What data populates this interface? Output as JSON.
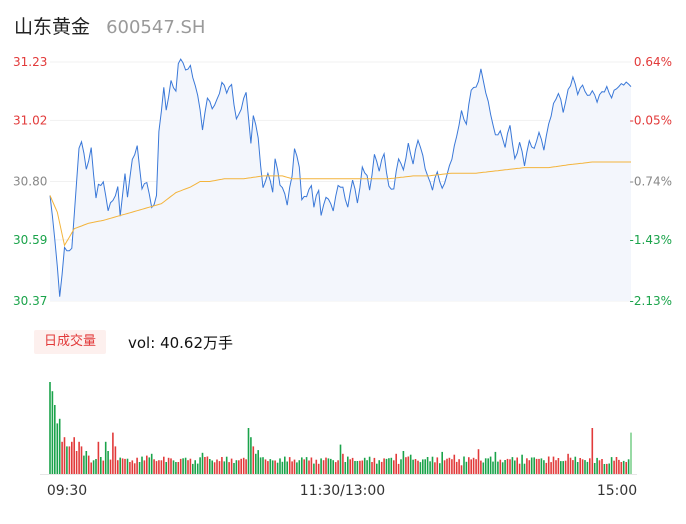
{
  "header": {
    "stock_name": "山东黄金",
    "stock_code": "600547.SH"
  },
  "volume_panel": {
    "tab_label": "日成交量",
    "vol_prefix": "vol:",
    "vol_value": "40.62万手"
  },
  "colors": {
    "price_line": "#3a78d8",
    "avg_line": "#f3b43c",
    "up": "#e23a3a",
    "down": "#1aa34a",
    "neutral": "#888888"
  },
  "chart_data": [
    {
      "type": "line",
      "title": "",
      "x_ticks": [
        "09:30",
        "11:30/13:00",
        "15:00"
      ],
      "y_ticks_price": [
        "31.23",
        "31.02",
        "30.80",
        "30.59",
        "30.37"
      ],
      "y_ticks_pct": [
        "0.64%",
        "-0.05%",
        "-0.74%",
        "-1.43%",
        "-2.13%"
      ],
      "ylim": [
        30.37,
        31.23
      ],
      "minutes": 240,
      "price_keyframes": [
        [
          0,
          30.75
        ],
        [
          2,
          30.6
        ],
        [
          4,
          30.38
        ],
        [
          6,
          30.56
        ],
        [
          9,
          30.55
        ],
        [
          10,
          30.68
        ],
        [
          12,
          30.92
        ],
        [
          13,
          30.95
        ],
        [
          15,
          30.84
        ],
        [
          17,
          30.92
        ],
        [
          19,
          30.74
        ],
        [
          20,
          30.78
        ],
        [
          22,
          30.8
        ],
        [
          24,
          30.7
        ],
        [
          26,
          30.73
        ],
        [
          28,
          30.78
        ],
        [
          29,
          30.68
        ],
        [
          31,
          30.82
        ],
        [
          32,
          30.75
        ],
        [
          34,
          30.88
        ],
        [
          36,
          30.92
        ],
        [
          38,
          30.78
        ],
        [
          40,
          30.8
        ],
        [
          42,
          30.7
        ],
        [
          44,
          30.75
        ],
        [
          45,
          30.98
        ],
        [
          47,
          31.13
        ],
        [
          48,
          31.06
        ],
        [
          50,
          31.16
        ],
        [
          52,
          31.12
        ],
        [
          53,
          31.22
        ],
        [
          54,
          31.25
        ],
        [
          56,
          31.2
        ],
        [
          58,
          31.21
        ],
        [
          60,
          31.15
        ],
        [
          62,
          31.06
        ],
        [
          63,
          30.98
        ],
        [
          65,
          31.11
        ],
        [
          67,
          31.06
        ],
        [
          69,
          31.09
        ],
        [
          71,
          31.16
        ],
        [
          73,
          31.12
        ],
        [
          75,
          31.15
        ],
        [
          77,
          31.02
        ],
        [
          79,
          31.06
        ],
        [
          81,
          31.13
        ],
        [
          83,
          30.93
        ],
        [
          84,
          31.04
        ],
        [
          86,
          30.96
        ],
        [
          88,
          30.77
        ],
        [
          90,
          30.83
        ],
        [
          92,
          30.77
        ],
        [
          93,
          30.88
        ],
        [
          95,
          30.79
        ],
        [
          97,
          30.76
        ],
        [
          98,
          30.72
        ],
        [
          100,
          30.82
        ],
        [
          101,
          30.92
        ],
        [
          103,
          30.86
        ],
        [
          104,
          30.73
        ],
        [
          106,
          30.75
        ],
        [
          108,
          30.79
        ],
        [
          109,
          30.71
        ],
        [
          111,
          30.77
        ],
        [
          112,
          30.68
        ],
        [
          114,
          30.75
        ],
        [
          115,
          30.73
        ],
        [
          117,
          30.7
        ],
        [
          119,
          30.79
        ],
        [
          121,
          30.77
        ],
        [
          123,
          30.71
        ],
        [
          125,
          30.81
        ],
        [
          127,
          30.72
        ],
        [
          129,
          30.85
        ],
        [
          131,
          30.82
        ],
        [
          132,
          30.76
        ],
        [
          134,
          30.9
        ],
        [
          136,
          30.84
        ],
        [
          138,
          30.9
        ],
        [
          140,
          30.78
        ],
        [
          142,
          30.77
        ],
        [
          144,
          30.89
        ],
        [
          146,
          30.84
        ],
        [
          148,
          30.93
        ],
        [
          150,
          30.87
        ],
        [
          152,
          30.95
        ],
        [
          154,
          30.89
        ],
        [
          156,
          30.82
        ],
        [
          158,
          30.77
        ],
        [
          160,
          30.84
        ],
        [
          162,
          30.77
        ],
        [
          164,
          30.82
        ],
        [
          166,
          30.89
        ],
        [
          168,
          30.96
        ],
        [
          170,
          31.05
        ],
        [
          172,
          31.01
        ],
        [
          174,
          31.13
        ],
        [
          176,
          31.14
        ],
        [
          178,
          31.2
        ],
        [
          180,
          31.12
        ],
        [
          182,
          31.05
        ],
        [
          184,
          30.96
        ],
        [
          186,
          30.98
        ],
        [
          188,
          30.93
        ],
        [
          190,
          31.0
        ],
        [
          192,
          30.88
        ],
        [
          194,
          30.94
        ],
        [
          196,
          30.86
        ],
        [
          198,
          30.95
        ],
        [
          200,
          30.91
        ],
        [
          202,
          30.98
        ],
        [
          204,
          30.92
        ],
        [
          206,
          31.0
        ],
        [
          208,
          31.08
        ],
        [
          210,
          31.12
        ],
        [
          212,
          31.05
        ],
        [
          214,
          31.13
        ],
        [
          216,
          31.17
        ],
        [
          218,
          31.12
        ],
        [
          220,
          31.15
        ],
        [
          222,
          31.1
        ],
        [
          224,
          31.13
        ],
        [
          226,
          31.09
        ],
        [
          228,
          31.12
        ],
        [
          230,
          31.14
        ],
        [
          232,
          31.1
        ],
        [
          234,
          31.14
        ],
        [
          236,
          31.15
        ],
        [
          238,
          31.15
        ]
      ],
      "avg_keyframes": [
        [
          0,
          30.75
        ],
        [
          3,
          30.69
        ],
        [
          6,
          30.57
        ],
        [
          10,
          30.63
        ],
        [
          16,
          30.65
        ],
        [
          22,
          30.66
        ],
        [
          30,
          30.68
        ],
        [
          38,
          30.7
        ],
        [
          46,
          30.72
        ],
        [
          52,
          30.76
        ],
        [
          58,
          30.78
        ],
        [
          62,
          30.8
        ],
        [
          66,
          30.8
        ],
        [
          72,
          30.81
        ],
        [
          80,
          30.81
        ],
        [
          88,
          30.82
        ],
        [
          96,
          30.82
        ],
        [
          100,
          30.81
        ],
        [
          110,
          30.81
        ],
        [
          120,
          30.81
        ],
        [
          130,
          30.81
        ],
        [
          140,
          30.81
        ],
        [
          150,
          30.82
        ],
        [
          156,
          30.82
        ],
        [
          166,
          30.83
        ],
        [
          176,
          30.83
        ],
        [
          186,
          30.84
        ],
        [
          196,
          30.85
        ],
        [
          206,
          30.85
        ],
        [
          214,
          30.86
        ],
        [
          224,
          30.87
        ],
        [
          230,
          30.87
        ],
        [
          238,
          30.87
        ]
      ]
    },
    {
      "type": "bar",
      "title": "",
      "description_series": "volume per minute",
      "spike_keyframes": [
        [
          0,
          10
        ],
        [
          1,
          9
        ],
        [
          2,
          7.5
        ],
        [
          3,
          5.5
        ],
        [
          4,
          6
        ],
        [
          5,
          3.5
        ],
        [
          6,
          4
        ],
        [
          7,
          3
        ],
        [
          8,
          3
        ],
        [
          9,
          3.5
        ],
        [
          10,
          4
        ],
        [
          11,
          2.5
        ],
        [
          12,
          3.5
        ],
        [
          13,
          3
        ],
        [
          14,
          2
        ],
        [
          15,
          2.5
        ],
        [
          16,
          2
        ],
        [
          20,
          3.5
        ],
        [
          23,
          3.5
        ],
        [
          24,
          2.5
        ],
        [
          26,
          4.5
        ],
        [
          27,
          3
        ],
        [
          40,
          2
        ],
        [
          41,
          1.8
        ],
        [
          42,
          2.2
        ],
        [
          43,
          1.6
        ],
        [
          44,
          1.4
        ],
        [
          45,
          1.5
        ],
        [
          50,
          1.7
        ],
        [
          53,
          1.3
        ],
        [
          60,
          1.5
        ],
        [
          63,
          2.3
        ],
        [
          65,
          1.9
        ],
        [
          82,
          5
        ],
        [
          83,
          4
        ],
        [
          84,
          3
        ],
        [
          85,
          2.2
        ],
        [
          86,
          2.6
        ],
        [
          87,
          1.8
        ],
        [
          90,
          1.4
        ],
        [
          104,
          1.8
        ],
        [
          117,
          1.5
        ],
        [
          120,
          3.2
        ],
        [
          121,
          2.2
        ],
        [
          124,
          1.6
        ],
        [
          143,
          2.2
        ],
        [
          145,
          1.6
        ],
        [
          146,
          2.5
        ],
        [
          148,
          1.9
        ],
        [
          149,
          2.1
        ],
        [
          155,
          1.6
        ],
        [
          160,
          1.8
        ],
        [
          162,
          2.4
        ],
        [
          167,
          2.1
        ],
        [
          171,
          1.9
        ],
        [
          177,
          2.7
        ],
        [
          181,
          1.7
        ],
        [
          184,
          2.4
        ],
        [
          195,
          2.1
        ],
        [
          200,
          1.8
        ],
        [
          203,
          1.7
        ],
        [
          206,
          1.9
        ],
        [
          209,
          1.5
        ],
        [
          214,
          2.2
        ],
        [
          220,
          1.6
        ],
        [
          224,
          5
        ],
        [
          225,
          1.2
        ],
        [
          230,
          1.1
        ],
        [
          236,
          1.3
        ],
        [
          240,
          4.5
        ]
      ]
    }
  ]
}
